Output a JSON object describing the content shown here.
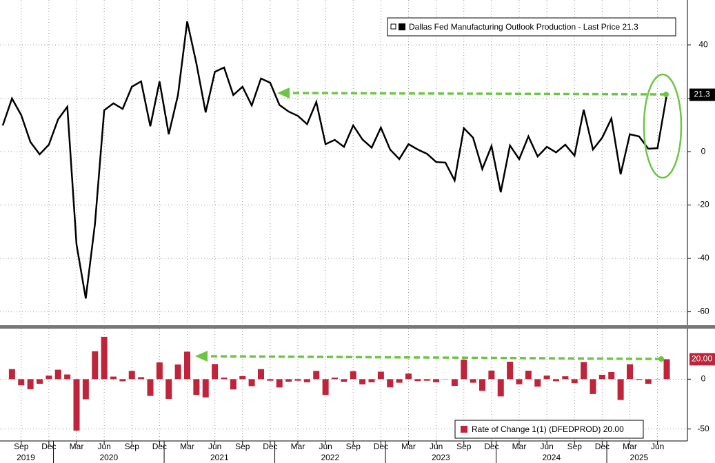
{
  "chart_data": [
    {
      "type": "line",
      "categories": [
        null,
        null,
        "Sep",
        null,
        null,
        "Dec",
        null,
        null,
        "Mar",
        null,
        null,
        "Jun",
        null,
        null,
        "Sep",
        null,
        null,
        "Dec",
        null,
        null,
        "Mar",
        null,
        null,
        "Jun",
        null,
        null,
        "Sep",
        null,
        null,
        "Dec",
        null,
        null,
        "Mar",
        null,
        null,
        "Jun",
        null,
        null,
        "Sep",
        null,
        null,
        "Dec",
        null,
        null,
        "Mar",
        null,
        null,
        "Jun",
        null,
        null,
        "Sep",
        null,
        null,
        "Dec",
        null,
        null,
        "Mar",
        null,
        null,
        "Jun",
        null,
        null,
        "Sep",
        null,
        null,
        "Dec",
        null,
        null,
        "Mar",
        null,
        null,
        "Jun",
        null
      ],
      "years": [
        "2019",
        "2020",
        "2021",
        "2022",
        "2023",
        "2024",
        "2025"
      ],
      "series": [
        {
          "name": "Dallas Fed Manufacturing Outlook Production - Last Price 21.3",
          "color": "#000000",
          "last_label": "21.3",
          "values": [
            9.8,
            19.9,
            13.7,
            3.6,
            -1,
            2.6,
            12.1,
            16.8,
            -34.8,
            -55,
            -27,
            15.5,
            18.1,
            16,
            24.3,
            26.3,
            9.5,
            26.3,
            6.5,
            21.2,
            48.8,
            33,
            14.7,
            29.9,
            31.5,
            21.2,
            24.3,
            17.3,
            27.4,
            25.8,
            17.5,
            15,
            13.4,
            10.3,
            18.6,
            2.8,
            4.4,
            1.8,
            9.8,
            4.6,
            1.5,
            9,
            0.8,
            -2.8,
            2.8,
            0.8,
            -0.8,
            -3.9,
            -4.1,
            -10.8,
            8.8,
            5.2,
            -6.5,
            2.1,
            -15.2,
            2.3,
            -2.8,
            5.7,
            -1.8,
            1.8,
            -0.3,
            2.6,
            -1.5,
            15.7,
            0.8,
            5.2,
            12.4,
            -8.5,
            6.5,
            5.7,
            1.1,
            1.3,
            21.3
          ]
        }
      ],
      "ylim": [
        -64.5,
        56.8
      ],
      "yticks": [
        40,
        20,
        0,
        -20,
        -40,
        -60
      ],
      "grid": true
    },
    {
      "type": "bar",
      "series": [
        {
          "name": "Rate of Change 1(1) (DFEDPROD) 20.00",
          "color": "#c0243a",
          "last_label": "20.00",
          "values": [
            null,
            10.1,
            -6.2,
            -10.1,
            -4.6,
            3.6,
            9.5,
            4.7,
            -51.6,
            -20.2,
            28,
            42.5,
            2.6,
            -2.1,
            8.3,
            2,
            -16.8,
            16.8,
            -19.8,
            14.7,
            27.6,
            -15.8,
            -18.3,
            15.2,
            1.6,
            -10.3,
            3.1,
            -7,
            10.1,
            -1.6,
            -8.3,
            -2.5,
            -1.6,
            -3.1,
            8.3,
            -15.8,
            1.6,
            -2.6,
            8,
            -5.2,
            -3.1,
            7.5,
            -8.2,
            -3.6,
            5.6,
            -2,
            -1.6,
            -3.1,
            -0.2,
            -6.7,
            19.6,
            -3.6,
            -11.7,
            8.6,
            -17.3,
            17.5,
            -5.1,
            8.5,
            -7.5,
            3.6,
            -2.1,
            2.9,
            -4.1,
            17.2,
            -14.9,
            4.4,
            7.2,
            -20.9,
            15,
            -0.8,
            -4.6,
            0.2,
            20
          ]
        }
      ],
      "ylim": [
        -62,
        50.7
      ],
      "yticks": [
        0,
        -50
      ],
      "grid": true
    }
  ]
}
